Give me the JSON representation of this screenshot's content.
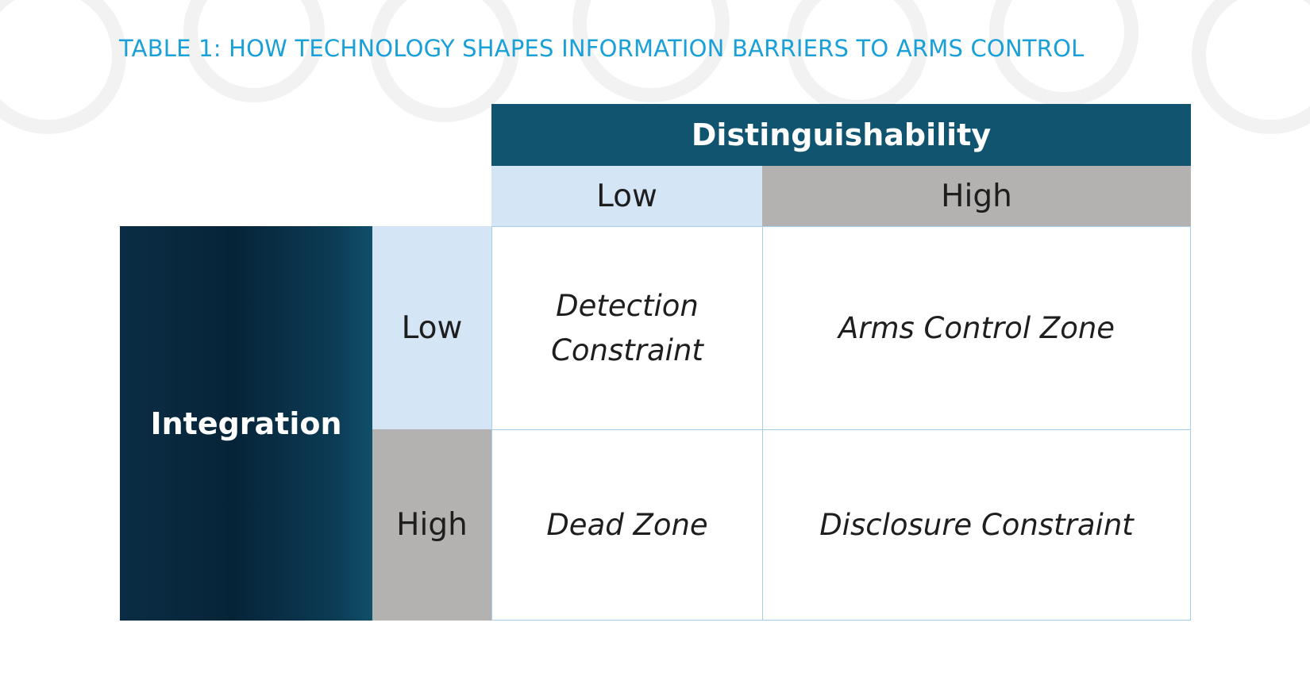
{
  "title": "TABLE 1: HOW TECHNOLOGY SHAPES INFORMATION BARRIERS TO ARMS CONTROL",
  "columns": {
    "header": "Distinguishability",
    "low": "Low",
    "high": "High"
  },
  "rows": {
    "header": "Integration",
    "low": "Low",
    "high": "High"
  },
  "cells": {
    "low_low": "Detection Constraint",
    "low_high": "Arms Control Zone",
    "high_low": "Dead Zone",
    "high_high": "Disclosure Constraint"
  },
  "colors": {
    "title": "#1aa0d8",
    "header_dark": "#11546f",
    "low_fill": "#d4e6f6",
    "high_fill": "#b3b2b1",
    "cell_border": "#a6cde8"
  }
}
